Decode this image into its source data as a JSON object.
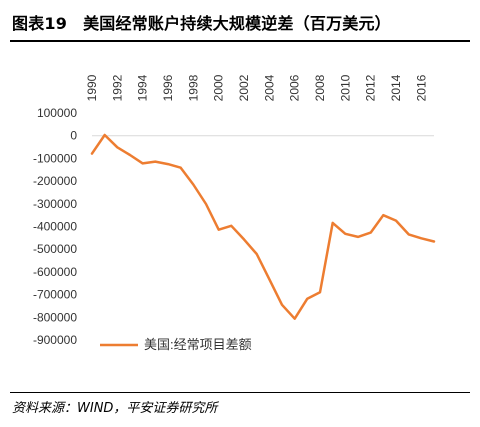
{
  "figure": {
    "number": "图表19",
    "title": "美国经常账户持续大规模逆差（百万美元）",
    "source": "资料来源：WIND，平安证券研究所"
  },
  "chart_data": {
    "type": "line",
    "title": "",
    "xlabel": "",
    "ylabel": "",
    "ylim": [
      -900000,
      100000
    ],
    "y_ticks": [
      100000,
      0,
      -100000,
      -200000,
      -300000,
      -400000,
      -500000,
      -600000,
      -700000,
      -800000,
      -900000
    ],
    "x_tick_labels": [
      "1990",
      "1992",
      "1994",
      "1996",
      "1998",
      "2000",
      "2002",
      "2004",
      "2006",
      "2008",
      "2010",
      "2012",
      "2014",
      "2016"
    ],
    "x_axis_position": "top",
    "x_tick_label_rotation": "vertical",
    "grid": false,
    "legend": "bottom-left",
    "color": "#ED7D31",
    "x": [
      1990,
      1991,
      1992,
      1993,
      1994,
      1995,
      1996,
      1997,
      1998,
      1999,
      2000,
      2001,
      2002,
      2003,
      2004,
      2005,
      2006,
      2007,
      2008,
      2009,
      2010,
      2011,
      2012,
      2013,
      2014,
      2015,
      2016,
      2017
    ],
    "series": [
      {
        "name": "美国:经常项目差额",
        "values": [
          -79000,
          3000,
          -51000,
          -85000,
          -122000,
          -114000,
          -125000,
          -141000,
          -215000,
          -301000,
          -414000,
          -397000,
          -457000,
          -521000,
          -632000,
          -745000,
          -806000,
          -718000,
          -690000,
          -384000,
          -432000,
          -446000,
          -427000,
          -350000,
          -374000,
          -435000,
          -452000,
          -466000
        ]
      }
    ]
  }
}
